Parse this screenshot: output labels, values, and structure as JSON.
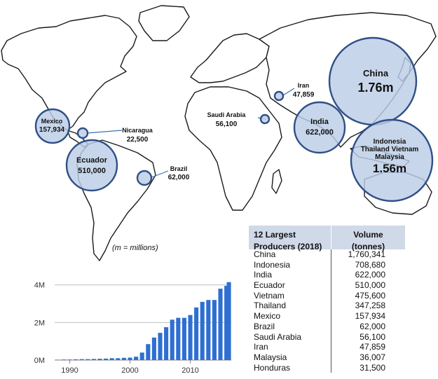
{
  "chart_data": [
    {
      "type": "bubble_map",
      "note": "(m = millions)",
      "producers": [
        {
          "name": "China",
          "value_label": "1.76m"
        },
        {
          "name": "Indonesia Thailand Vietnam Malaysia",
          "name_lines": [
            "Indonesia",
            "Thailand Vietnam",
            "Malaysia"
          ],
          "value_label": "1.56m"
        },
        {
          "name": "India",
          "value_label": "622,000"
        },
        {
          "name": "Ecuador",
          "value_label": "510,000"
        },
        {
          "name": "Mexico",
          "value_label": "157,934"
        },
        {
          "name": "Brazil",
          "value_label": "62,000"
        },
        {
          "name": "Saudi Arabia",
          "value_label": "56,100"
        },
        {
          "name": "Iran",
          "value_label": "47,859"
        },
        {
          "name": "Nicaragua",
          "value_label": "22,500"
        }
      ]
    },
    {
      "type": "table",
      "columns": [
        "12 Largest Producers (2018)",
        "Volume (tonnes)"
      ],
      "column_lines": [
        [
          "12 Largest",
          "Producers (2018)"
        ],
        [
          "Volume",
          "(tonnes)"
        ]
      ],
      "rows": [
        [
          "China",
          "1,760,341"
        ],
        [
          "Indonesia",
          "708,680"
        ],
        [
          "India",
          "622,000"
        ],
        [
          "Ecuador",
          "510,000"
        ],
        [
          "Vietnam",
          "475,600"
        ],
        [
          "Thailand",
          "347,258"
        ],
        [
          "Mexico",
          "157,934"
        ],
        [
          "Brazil",
          "62,000"
        ],
        [
          "Saudi Arabia",
          "56,100"
        ],
        [
          "Iran",
          "47,859"
        ],
        [
          "Malaysia",
          "36,007"
        ],
        [
          "Honduras",
          "31,500"
        ]
      ]
    },
    {
      "type": "bar",
      "x": [
        1988,
        1989,
        1990,
        1991,
        1992,
        1993,
        1994,
        1995,
        1996,
        1997,
        1998,
        1999,
        2000,
        2001,
        2002,
        2003,
        2004,
        2005,
        2006,
        2007,
        2008,
        2009,
        2010,
        2011,
        2012,
        2013,
        2014,
        2015,
        2016
      ],
      "values": [
        0.02,
        0.03,
        0.03,
        0.04,
        0.05,
        0.05,
        0.06,
        0.07,
        0.08,
        0.1,
        0.1,
        0.12,
        0.13,
        0.18,
        0.4,
        0.85,
        1.2,
        1.45,
        1.75,
        2.15,
        2.25,
        2.25,
        2.4,
        2.8,
        3.1,
        3.2,
        3.2,
        3.8,
        3.95
      ],
      "values_end": 4.15,
      "yticks": [
        "0M",
        "2M",
        "4M"
      ],
      "ytick_values": [
        0,
        2,
        4
      ],
      "xticks": [
        "1990",
        "2000",
        "2010"
      ],
      "xtick_values": [
        1990,
        2000,
        2010
      ],
      "ylim": [
        0,
        4.4
      ],
      "color": "#2e6fd1",
      "grid": true
    }
  ]
}
